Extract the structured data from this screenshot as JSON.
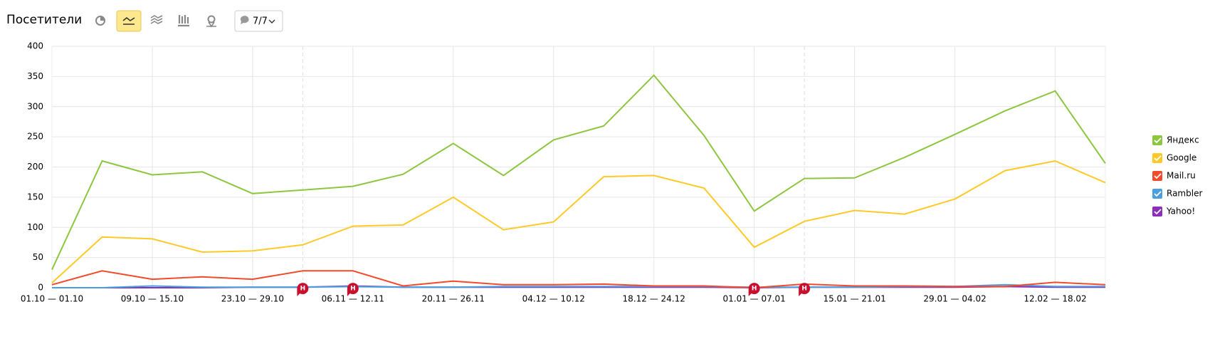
{
  "toolbar": {
    "title": "Посетители",
    "counter": "7/7"
  },
  "chart_data": {
    "type": "line",
    "categories": [
      "01.10 — 01.10",
      null,
      "09.10 — 15.10",
      null,
      "23.10 — 29.10",
      null,
      "06.11 — 12.11",
      null,
      "20.11 — 26.11",
      null,
      "04.12 — 10.12",
      null,
      "18.12 — 24.12",
      null,
      "01.01 — 07.01",
      null,
      "15.01 — 21.01",
      null,
      "29.01 — 04.02",
      null,
      "12.02 — 18.02",
      null
    ],
    "series": [
      {
        "name": "Яндекс",
        "color": "#8dc63f",
        "values": [
          30,
          210,
          187,
          192,
          156,
          162,
          168,
          188,
          239,
          186,
          245,
          268,
          352,
          252,
          127,
          181,
          182,
          216,
          254,
          293,
          326,
          206
        ]
      },
      {
        "name": "Google",
        "color": "#ffc928",
        "values": [
          8,
          84,
          81,
          59,
          61,
          71,
          102,
          104,
          150,
          96,
          109,
          184,
          186,
          165,
          67,
          110,
          128,
          122,
          147,
          194,
          210,
          174
        ]
      },
      {
        "name": "Mail.ru",
        "color": "#f44a2c",
        "values": [
          5,
          28,
          14,
          18,
          14,
          28,
          28,
          3,
          11,
          5,
          5,
          6,
          3,
          3,
          0,
          6,
          3,
          3,
          2,
          2,
          9,
          5
        ]
      },
      {
        "name": "Rambler",
        "color": "#4a9fe0",
        "values": [
          0,
          0,
          3,
          1,
          1,
          1,
          2,
          1,
          1,
          2,
          2,
          2,
          2,
          2,
          1,
          1,
          1,
          2,
          2,
          5,
          2,
          2
        ]
      },
      {
        "name": "Yahoo!",
        "color": "#8a2fb8",
        "values": [
          0,
          0,
          0,
          0,
          1,
          1,
          3,
          1,
          1,
          1,
          1,
          1,
          1,
          1,
          0,
          1,
          1,
          1,
          1,
          2,
          1,
          1
        ]
      }
    ],
    "ylim": [
      0,
      400
    ],
    "yticks": [
      0,
      50,
      100,
      150,
      200,
      250,
      300,
      350,
      400
    ],
    "grid": true,
    "notes": [
      "Н",
      "Н",
      "Н",
      "Н"
    ]
  }
}
